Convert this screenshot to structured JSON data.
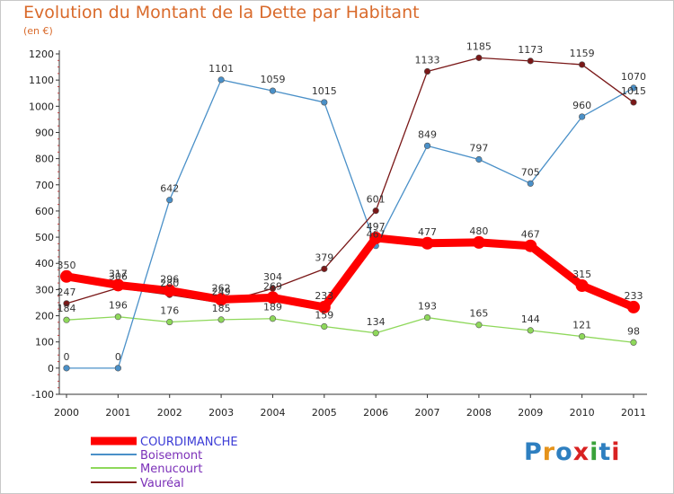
{
  "title": "Evolution du Montant de la Dette par Habitant",
  "subtitle": "(en €)",
  "logo": {
    "text": "Proxiti",
    "colors": [
      "#2e7fc0",
      "#e5931b",
      "#2e7fc0",
      "#d82222",
      "#3aa23a",
      "#2e7fc0",
      "#d82222"
    ]
  },
  "chart_data": {
    "type": "line",
    "title": "Evolution du Montant de la Dette par Habitant",
    "ylabel": "(en €)",
    "xlabel": "",
    "ylim": [
      -100,
      1200
    ],
    "yticks": [
      -100,
      0,
      100,
      200,
      300,
      400,
      500,
      600,
      700,
      800,
      900,
      1000,
      1100,
      1200
    ],
    "grid": false,
    "legend_position": "bottom-left",
    "x": [
      "2000",
      "2001",
      "2002",
      "2003",
      "2004",
      "2005",
      "2006",
      "2007",
      "2008",
      "2009",
      "2010",
      "2011"
    ],
    "series": [
      {
        "name": "COURDIMANCHE",
        "color": "#ff0000",
        "values": [
          350,
          317,
          296,
          262,
          269,
          233,
          497,
          477,
          480,
          467,
          315,
          233
        ]
      },
      {
        "name": "Boisemont",
        "color": "#4a90c8",
        "values": [
          0,
          0,
          642,
          1101,
          1059,
          1015,
          467,
          849,
          797,
          705,
          960,
          1070
        ]
      },
      {
        "name": "Menucourt",
        "color": "#8ed85a",
        "values": [
          184,
          196,
          176,
          185,
          189,
          159,
          134,
          193,
          165,
          144,
          121,
          98
        ]
      },
      {
        "name": "Vauréal",
        "color": "#7a1818",
        "values": [
          247,
          306,
          280,
          249,
          304,
          379,
          601,
          1133,
          1185,
          1173,
          1159,
          1015
        ]
      }
    ]
  }
}
